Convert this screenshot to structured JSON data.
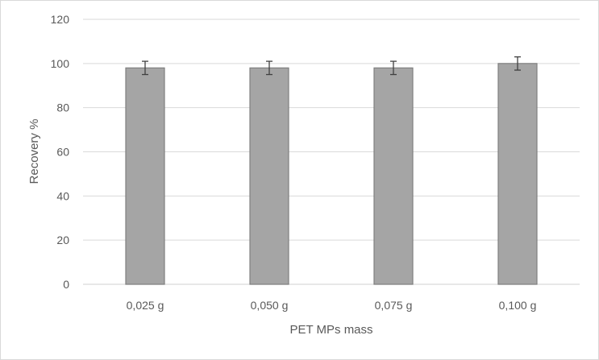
{
  "chart_data": {
    "type": "bar",
    "title": "",
    "xlabel": "PET MPs mass",
    "ylabel": "Recovery %",
    "categories": [
      "0,025 g",
      "0,050 g",
      "0,075 g",
      "0,100 g"
    ],
    "values": [
      98,
      98,
      98,
      100
    ],
    "errors": [
      3,
      3,
      3,
      3
    ],
    "ylim": [
      0,
      120
    ],
    "yticks": [
      0,
      20,
      40,
      60,
      80,
      100,
      120
    ],
    "ytick_labels": [
      "0",
      "20",
      "40",
      "60",
      "80",
      "100",
      "120"
    ],
    "grid": true,
    "legend": "none",
    "colors": {
      "bar_fill": "#a5a5a5",
      "bar_stroke": "#7f7f7f",
      "gridline": "#d9d9d9",
      "error_bar": "#404040"
    }
  }
}
